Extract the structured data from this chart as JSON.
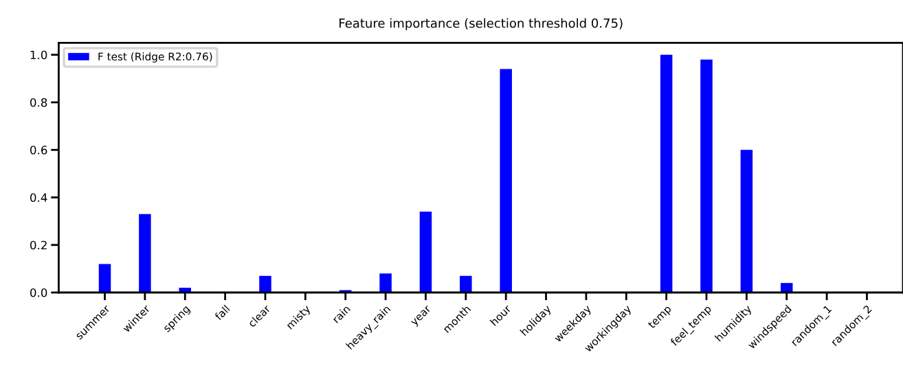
{
  "chart_data": {
    "type": "bar",
    "title": "Feature importance (selection threshold 0.75)",
    "categories": [
      "summer",
      "winter",
      "spring",
      "fall",
      "clear",
      "misty",
      "rain",
      "heavy_rain",
      "year",
      "month",
      "hour",
      "holiday",
      "weekday",
      "workingday",
      "temp",
      "feel_temp",
      "humidity",
      "windspeed",
      "random_1",
      "random_2"
    ],
    "series": [
      {
        "name": "F test (Ridge R2:0.76)",
        "color": "#0000ff",
        "values": [
          0.12,
          0.33,
          0.02,
          0,
          0.07,
          0,
          0.01,
          0.08,
          0.34,
          0.07,
          0.94,
          0,
          0,
          0,
          1.0,
          0.98,
          0.6,
          0.04,
          0,
          0
        ]
      }
    ],
    "ylim": [
      0,
      1.05
    ],
    "yticks": [
      {
        "value": 0,
        "label": "0.0"
      },
      {
        "value": 0.2,
        "label": "0.2"
      },
      {
        "value": 0.4,
        "label": "0.4"
      },
      {
        "value": 0.6,
        "label": "0.6"
      },
      {
        "value": 0.8,
        "label": "0.8"
      },
      {
        "value": 1.0,
        "label": "1.0"
      }
    ],
    "grid": false,
    "legend": "top left"
  }
}
